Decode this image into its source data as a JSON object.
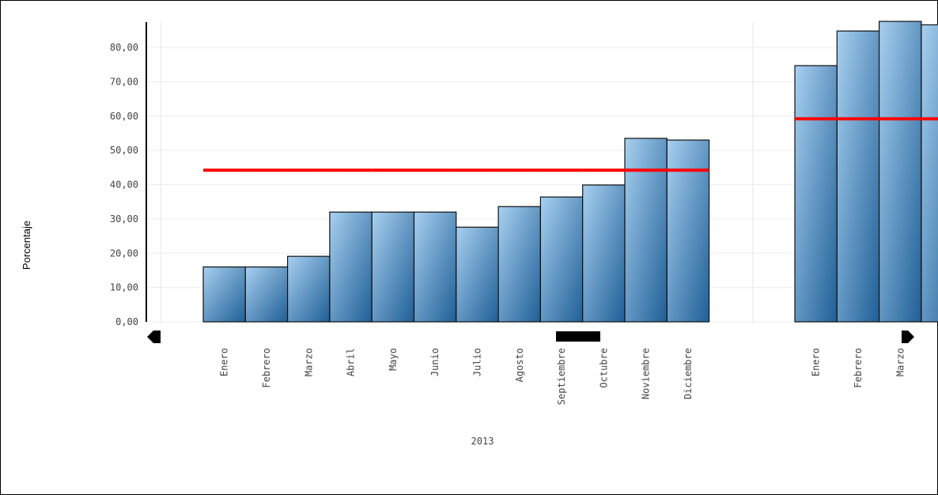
{
  "chart_data": {
    "type": "bar",
    "y_label": "Porcentaje",
    "group_label": "2013",
    "categories": [
      "Enero",
      "Febrero",
      "Marzo",
      "Abril",
      "Mayo",
      "Junio",
      "Julio",
      "Agosto",
      "Septiembre",
      "Octubre",
      "Noviembre",
      "Diciembre",
      "Enero",
      "Febrero",
      "Marzo",
      null
    ],
    "series": [
      {
        "type": "bar",
        "color": "#1f5f97",
        "values": [
          16,
          16,
          19.1,
          32,
          32,
          32,
          27.6,
          33.6,
          36.4,
          39.9,
          53.5,
          53,
          74.7,
          84.8,
          87.6,
          86.6
        ]
      },
      {
        "type": "line",
        "color": "#ff0000",
        "values": [
          44.2,
          44.2,
          44.2,
          44.2,
          44.2,
          44.2,
          44.2,
          44.2,
          44.2,
          44.2,
          44.2,
          44.2,
          59.2,
          59.2,
          59.2,
          59.2
        ]
      }
    ],
    "ylim": [
      0,
      87.6
    ],
    "yticks": [
      {
        "value": 0,
        "label": "0,00"
      },
      {
        "value": 10,
        "label": "10,00"
      },
      {
        "value": 20,
        "label": "20,00"
      },
      {
        "value": 30,
        "label": "30,00"
      },
      {
        "value": 40,
        "label": "40,00"
      },
      {
        "value": 50,
        "label": "50,00"
      },
      {
        "value": 60,
        "label": "60,00"
      },
      {
        "value": 70,
        "label": "70,00"
      },
      {
        "value": 80,
        "label": "80,00"
      }
    ],
    "grid": true
  }
}
